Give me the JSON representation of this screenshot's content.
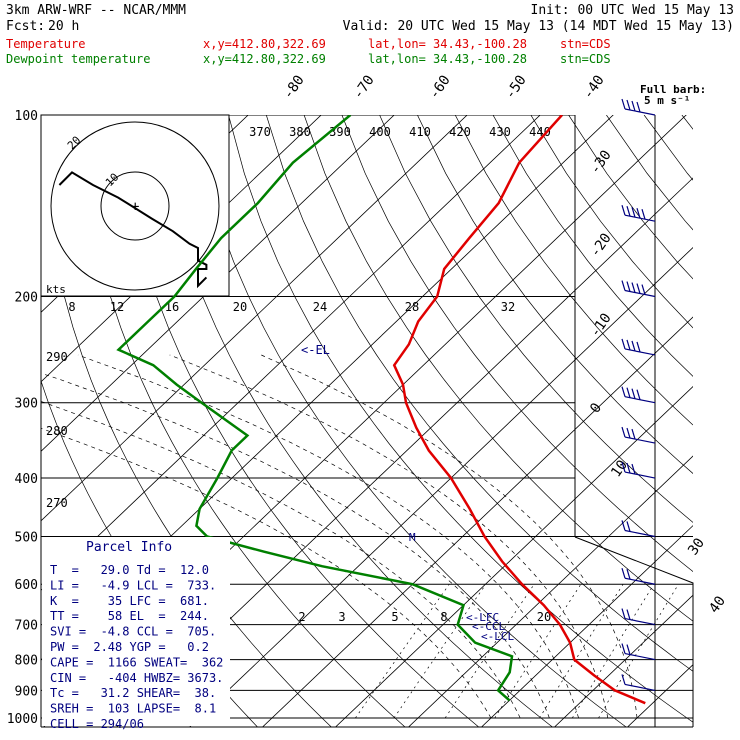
{
  "header": {
    "model": "3km ARW-WRF -- NCAR/MMM",
    "init": "Init: 00 UTC Wed 15 May 13",
    "fcst_label": "Fcst:",
    "fcst_value": "20 h",
    "valid": "Valid: 20 UTC Wed 15 May 13 (14 MDT Wed 15 May 13)",
    "temp_line": {
      "name": "Temperature",
      "xy": "x,y=412.80,322.69",
      "latlon": "lat,lon= 34.43,-100.28",
      "stn": "stn=CDS",
      "color": "#e00000"
    },
    "dew_line": {
      "name": "Dewpoint temperature",
      "xy": "x,y=412.80,322.69",
      "latlon": "lat,lon= 34.43,-100.28",
      "stn": "stn=CDS",
      "color": "#008000"
    }
  },
  "barb_key": {
    "line1": "Full barb:",
    "line2": "5 m s⁻¹"
  },
  "hodograph": {
    "unit": "kts",
    "ring_labels": [
      "20",
      "10"
    ],
    "theta_labels": [
      "370",
      "380",
      "390",
      "400",
      "410",
      "420",
      "430",
      "440"
    ],
    "mixing_labels_upper": [
      "8",
      "12",
      "16",
      "20",
      "24",
      "28",
      "32"
    ],
    "path_knots": [
      [
        -18,
        5
      ],
      [
        -15,
        8
      ],
      [
        -10,
        5
      ],
      [
        -4,
        2
      ],
      [
        4,
        -3
      ],
      [
        9,
        -6
      ],
      [
        13,
        -9
      ],
      [
        15,
        -10
      ],
      [
        15,
        -13
      ],
      [
        17,
        -14
      ],
      [
        17,
        -15
      ],
      [
        15,
        -15
      ],
      [
        15,
        -19
      ],
      [
        17,
        -17
      ]
    ]
  },
  "diagram": {
    "isobar_labels": [
      "100",
      "200",
      "300",
      "400",
      "500",
      "600",
      "700",
      "800",
      "900",
      "1000"
    ],
    "isotherm_labels": [
      "-80",
      "-70",
      "-60",
      "-50",
      "-40",
      "-30",
      "-20",
      "-10",
      "0",
      "10",
      "30",
      "40"
    ],
    "theta_side_labels": [
      "290",
      "280",
      "270"
    ],
    "mixing_labels_lower": [
      "2",
      "3",
      "5",
      "8",
      "20"
    ],
    "el_label": "<-EL",
    "lfc_label": "<-LFC",
    "ccl_label": "<-CCL",
    "lcl_label": "<-LCL",
    "m_label": "M"
  },
  "parcel_info": {
    "title": "Parcel Info",
    "rows": [
      "T  =   29.0 Td =  12.0",
      "LI =   -4.9 LCL =  733.",
      "K  =    35 LFC =  681.",
      "TT =    58 EL  =  244.",
      "SVI =  -4.8 CCL =  705.",
      "PW =  2.48 YGP =   0.2",
      "CAPE =  1166 SWEAT=  362",
      "CIN =   -404 HWBZ= 3673.",
      "Tc =   31.2 SHEAR=  38.",
      "SREH =  103 LAPSE=  8.1",
      "CELL = 294/06"
    ]
  },
  "chart_data": {
    "type": "line",
    "pressure_levels": [
      100,
      200,
      300,
      400,
      500,
      600,
      700,
      800,
      900,
      1000
    ],
    "isotherms": [
      -80,
      -70,
      -60,
      -50,
      -40,
      -30,
      -20,
      -10,
      0,
      10,
      20,
      30,
      40
    ],
    "series": [
      {
        "name": "Temperature",
        "color": "#e00000",
        "points": [
          [
            100,
            -67
          ],
          [
            120,
            -66
          ],
          [
            140,
            -63
          ],
          [
            160,
            -62
          ],
          [
            180,
            -61
          ],
          [
            200,
            -58
          ],
          [
            220,
            -57
          ],
          [
            240,
            -55
          ],
          [
            260,
            -54
          ],
          [
            280,
            -50
          ],
          [
            300,
            -47
          ],
          [
            330,
            -42
          ],
          [
            360,
            -37
          ],
          [
            400,
            -30
          ],
          [
            450,
            -23
          ],
          [
            500,
            -17
          ],
          [
            550,
            -11
          ],
          [
            600,
            -5
          ],
          [
            650,
            1
          ],
          [
            700,
            6
          ],
          [
            750,
            10
          ],
          [
            800,
            13
          ],
          [
            850,
            18
          ],
          [
            900,
            23
          ],
          [
            945,
            29
          ]
        ]
      },
      {
        "name": "Dewpoint temperature",
        "color": "#008000",
        "points": [
          [
            100,
            -96
          ],
          [
            120,
            -97
          ],
          [
            140,
            -96
          ],
          [
            160,
            -96
          ],
          [
            180,
            -95
          ],
          [
            200,
            -94
          ],
          [
            220,
            -94
          ],
          [
            245,
            -94
          ],
          [
            260,
            -87
          ],
          [
            280,
            -81
          ],
          [
            300,
            -75
          ],
          [
            340,
            -64
          ],
          [
            360,
            -64
          ],
          [
            400,
            -62
          ],
          [
            450,
            -60
          ],
          [
            480,
            -58
          ],
          [
            500,
            -55
          ],
          [
            530,
            -45
          ],
          [
            560,
            -35
          ],
          [
            600,
            -20
          ],
          [
            650,
            -10
          ],
          [
            700,
            -8
          ],
          [
            750,
            -3
          ],
          [
            790,
            4
          ],
          [
            840,
            6
          ],
          [
            900,
            7
          ],
          [
            935,
            10
          ]
        ]
      }
    ],
    "wind_barbs_ms": [
      {
        "p": 100,
        "speed": 20
      },
      {
        "p": 150,
        "speed": 25
      },
      {
        "p": 200,
        "speed": 25
      },
      {
        "p": 250,
        "speed": 20
      },
      {
        "p": 300,
        "speed": 20
      },
      {
        "p": 350,
        "speed": 15
      },
      {
        "p": 400,
        "speed": 15
      },
      {
        "p": 500,
        "speed": 10
      },
      {
        "p": 600,
        "speed": 10
      },
      {
        "p": 700,
        "speed": 10
      },
      {
        "p": 800,
        "speed": 10
      },
      {
        "p": 900,
        "speed": 5
      }
    ]
  }
}
